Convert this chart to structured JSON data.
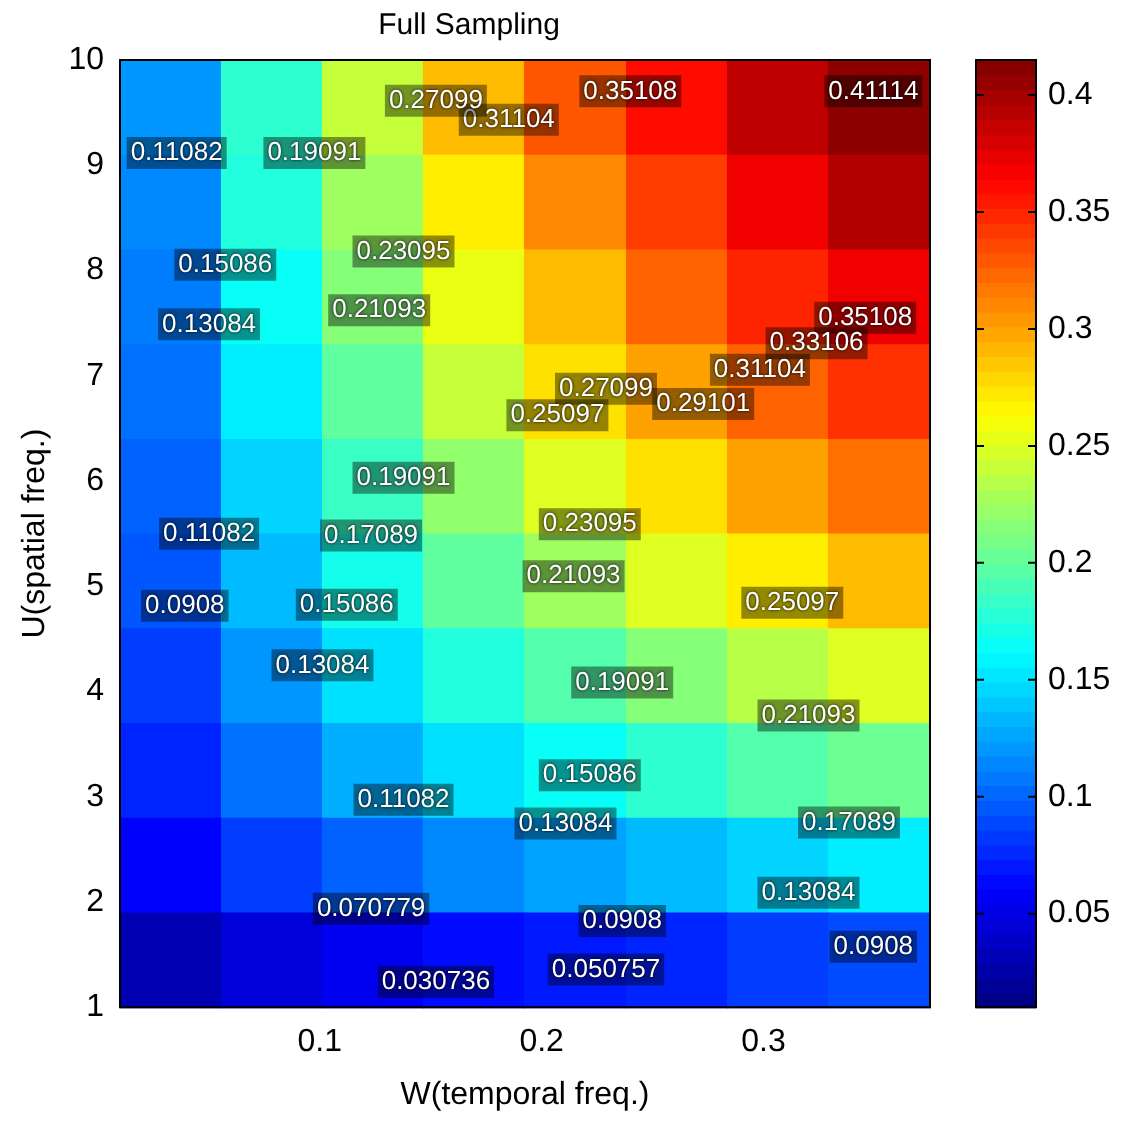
{
  "chart_data": {
    "type": "heatmap",
    "title": "Full Sampling",
    "xlabel": "W(temporal freq.)",
    "ylabel": "U(spatial freq.)",
    "x": [
      0.033,
      0.078,
      0.124,
      0.169,
      0.215,
      0.261,
      0.306,
      0.352
    ],
    "y": [
      9.55,
      8.65,
      7.75,
      6.85,
      5.95,
      5.05,
      4.15,
      3.25,
      2.35,
      1.45
    ],
    "xlim": [
      0.01,
      0.375
    ],
    "xticks": [
      0.1,
      0.2,
      0.3
    ],
    "ylim": [
      1,
      10
    ],
    "yticks": [
      1,
      2,
      3,
      4,
      5,
      6,
      7,
      8,
      9,
      10
    ],
    "cells": [
      [
        0.12,
        0.18,
        0.24,
        0.29,
        0.33,
        0.36,
        0.39,
        0.41
      ],
      [
        0.115,
        0.175,
        0.225,
        0.27,
        0.31,
        0.34,
        0.37,
        0.395
      ],
      [
        0.11,
        0.165,
        0.215,
        0.255,
        0.29,
        0.325,
        0.35,
        0.37
      ],
      [
        0.105,
        0.155,
        0.2,
        0.24,
        0.275,
        0.3,
        0.325,
        0.345
      ],
      [
        0.1,
        0.145,
        0.185,
        0.22,
        0.25,
        0.275,
        0.3,
        0.32
      ],
      [
        0.095,
        0.135,
        0.17,
        0.2,
        0.225,
        0.25,
        0.27,
        0.29
      ],
      [
        0.085,
        0.12,
        0.15,
        0.175,
        0.195,
        0.215,
        0.235,
        0.25
      ],
      [
        0.075,
        0.105,
        0.13,
        0.15,
        0.165,
        0.18,
        0.195,
        0.205
      ],
      [
        0.06,
        0.085,
        0.1,
        0.115,
        0.125,
        0.135,
        0.145,
        0.155
      ],
      [
        0.03,
        0.045,
        0.055,
        0.065,
        0.07,
        0.075,
        0.085,
        0.09
      ]
    ],
    "clim": [
      0.01,
      0.415
    ],
    "cticks": [
      0.05,
      0.1,
      0.15,
      0.2,
      0.25,
      0.3,
      0.35,
      0.4
    ],
    "annotations": [
      "0.41114",
      "0.35108",
      "0.31104",
      "0.27099",
      "0.19091",
      "0.11082",
      "0.15086",
      "0.23095",
      "0.21093",
      "0.13084",
      "0.35108",
      "0.33106",
      "0.31104",
      "0.29101",
      "0.27099",
      "0.25097",
      "0.19091",
      "0.17089",
      "0.11082",
      "0.23095",
      "0.21093",
      "0.25097",
      "0.0908",
      "0.15086",
      "0.13084",
      "0.19091",
      "0.21093",
      "0.15086",
      "0.13084",
      "0.11082",
      "0.17089",
      "0.13084",
      "0.070779",
      "0.0908",
      "0.0908",
      "0.050757",
      "0.030736"
    ]
  }
}
